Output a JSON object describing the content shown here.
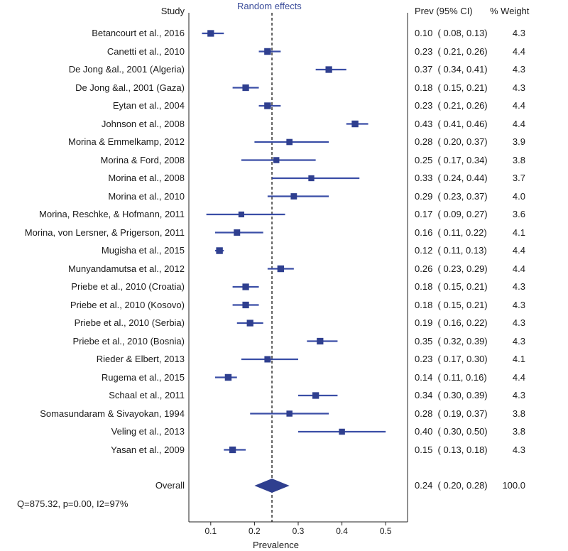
{
  "headers": {
    "study": "Study",
    "method": "Random effects",
    "ci": "Prev (95% CI)",
    "weight": "% Weight"
  },
  "chart_data": {
    "type": "forest",
    "title": "Random effects",
    "xlabel": "Prevalence",
    "xlim": [
      0.05,
      0.55
    ],
    "xticks": [
      "0.1",
      "0.2",
      "0.3",
      "0.4",
      "0.5"
    ],
    "xtick_values": [
      0.1,
      0.2,
      0.3,
      0.4,
      0.5
    ],
    "reference_line": 0.24,
    "studies": [
      {
        "name": "Betancourt et al., 2016",
        "est": 0.1,
        "lo": 0.08,
        "hi": 0.13,
        "ci_text": "0.10  ( 0.08, 0.13)",
        "weight": "4.3"
      },
      {
        "name": "Canetti et al., 2010",
        "est": 0.23,
        "lo": 0.21,
        "hi": 0.26,
        "ci_text": "0.23  ( 0.21, 0.26)",
        "weight": "4.4"
      },
      {
        "name": "De Jong &al., 2001 (Algeria)",
        "est": 0.37,
        "lo": 0.34,
        "hi": 0.41,
        "ci_text": "0.37  ( 0.34, 0.41)",
        "weight": "4.3"
      },
      {
        "name": "De Jong &al., 2001 (Gaza)",
        "est": 0.18,
        "lo": 0.15,
        "hi": 0.21,
        "ci_text": "0.18  ( 0.15, 0.21)",
        "weight": "4.3"
      },
      {
        "name": "Eytan et al., 2004",
        "est": 0.23,
        "lo": 0.21,
        "hi": 0.26,
        "ci_text": "0.23  ( 0.21, 0.26)",
        "weight": "4.4"
      },
      {
        "name": "Johnson et al., 2008",
        "est": 0.43,
        "lo": 0.41,
        "hi": 0.46,
        "ci_text": "0.43  ( 0.41, 0.46)",
        "weight": "4.4"
      },
      {
        "name": "Morina & Emmelkamp, 2012",
        "est": 0.28,
        "lo": 0.2,
        "hi": 0.37,
        "ci_text": "0.28  ( 0.20, 0.37)",
        "weight": "3.9"
      },
      {
        "name": "Morina & Ford, 2008",
        "est": 0.25,
        "lo": 0.17,
        "hi": 0.34,
        "ci_text": "0.25  ( 0.17, 0.34)",
        "weight": "3.8"
      },
      {
        "name": "Morina et al., 2008",
        "est": 0.33,
        "lo": 0.24,
        "hi": 0.44,
        "ci_text": "0.33  ( 0.24, 0.44)",
        "weight": "3.7"
      },
      {
        "name": "Morina et al., 2010",
        "est": 0.29,
        "lo": 0.23,
        "hi": 0.37,
        "ci_text": "0.29  ( 0.23, 0.37)",
        "weight": "4.0"
      },
      {
        "name": "Morina, Reschke, & Hofmann, 2011",
        "est": 0.17,
        "lo": 0.09,
        "hi": 0.27,
        "ci_text": "0.17  ( 0.09, 0.27)",
        "weight": "3.6"
      },
      {
        "name": "Morina, von Lersner, & Prigerson, 2011",
        "est": 0.16,
        "lo": 0.11,
        "hi": 0.22,
        "ci_text": "0.16  ( 0.11, 0.22)",
        "weight": "4.1"
      },
      {
        "name": "Mugisha et al., 2015",
        "est": 0.12,
        "lo": 0.11,
        "hi": 0.13,
        "ci_text": "0.12  ( 0.11, 0.13)",
        "weight": "4.4"
      },
      {
        "name": "Munyandamutsa et al., 2012",
        "est": 0.26,
        "lo": 0.23,
        "hi": 0.29,
        "ci_text": "0.26  ( 0.23, 0.29)",
        "weight": "4.4"
      },
      {
        "name": "Priebe et al., 2010 (Croatia)",
        "est": 0.18,
        "lo": 0.15,
        "hi": 0.21,
        "ci_text": "0.18  ( 0.15, 0.21)",
        "weight": "4.3"
      },
      {
        "name": "Priebe et al., 2010 (Kosovo)",
        "est": 0.18,
        "lo": 0.15,
        "hi": 0.21,
        "ci_text": "0.18  ( 0.15, 0.21)",
        "weight": "4.3"
      },
      {
        "name": "Priebe et al., 2010 (Serbia)",
        "est": 0.19,
        "lo": 0.16,
        "hi": 0.22,
        "ci_text": "0.19  ( 0.16, 0.22)",
        "weight": "4.3"
      },
      {
        "name": "Priebe et al., 2010 (Bosnia)",
        "est": 0.35,
        "lo": 0.32,
        "hi": 0.39,
        "ci_text": "0.35  ( 0.32, 0.39)",
        "weight": "4.3"
      },
      {
        "name": "Rieder & Elbert, 2013",
        "est": 0.23,
        "lo": 0.17,
        "hi": 0.3,
        "ci_text": "0.23  ( 0.17, 0.30)",
        "weight": "4.1"
      },
      {
        "name": "Rugema et al., 2015",
        "est": 0.14,
        "lo": 0.11,
        "hi": 0.16,
        "ci_text": "0.14  ( 0.11, 0.16)",
        "weight": "4.4"
      },
      {
        "name": "Schaal et al., 2011",
        "est": 0.34,
        "lo": 0.3,
        "hi": 0.39,
        "ci_text": "0.34  ( 0.30, 0.39)",
        "weight": "4.3"
      },
      {
        "name": "Somasundaram & Sivayokan, 1994",
        "est": 0.28,
        "lo": 0.19,
        "hi": 0.37,
        "ci_text": "0.28  ( 0.19, 0.37)",
        "weight": "3.8"
      },
      {
        "name": "Veling et al., 2013",
        "est": 0.4,
        "lo": 0.3,
        "hi": 0.5,
        "ci_text": "0.40  ( 0.30, 0.50)",
        "weight": "3.8"
      },
      {
        "name": "Yasan et al., 2009",
        "est": 0.15,
        "lo": 0.13,
        "hi": 0.18,
        "ci_text": "0.15  ( 0.13, 0.18)",
        "weight": "4.3"
      }
    ],
    "overall": {
      "name": "Overall",
      "est": 0.24,
      "lo": 0.2,
      "hi": 0.28,
      "ci_text": "0.24  ( 0.20, 0.28)",
      "weight": "100.0"
    },
    "heterogeneity": "Q=875.32, p=0.00, I2=97%",
    "colors": {
      "marker": "#2f3f8f",
      "ci_line": "#3a4ea6",
      "text": "#1a1a1a"
    }
  }
}
